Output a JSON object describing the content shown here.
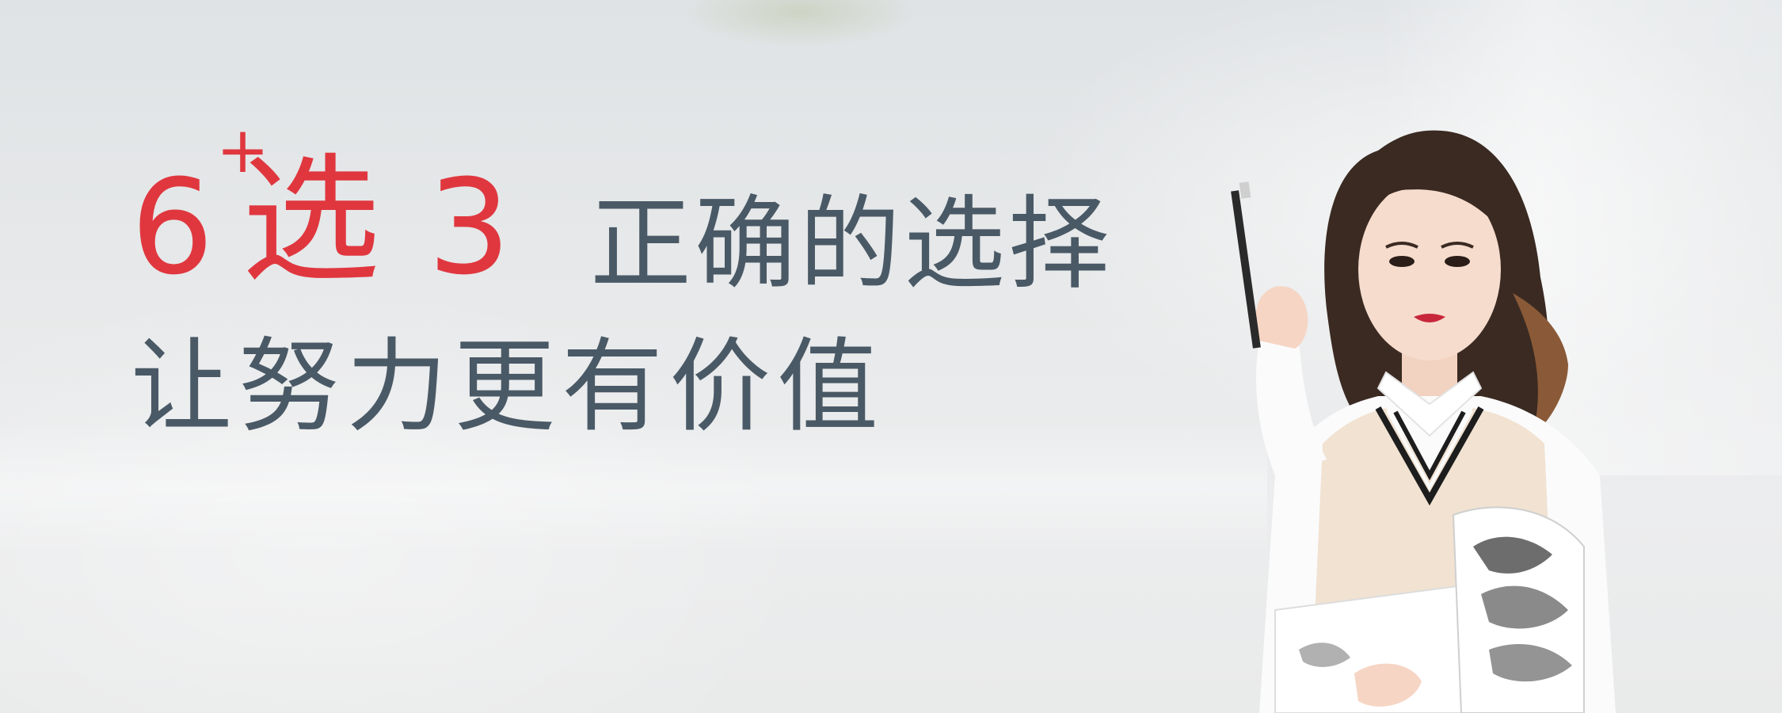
{
  "headline": {
    "number": "6",
    "plus": "+",
    "xuan": "选",
    "three": "3",
    "slogan_line_one": "正确的选择",
    "slogan_line_two": "让努力更有价值"
  },
  "colors": {
    "accent_red": "#e0373f",
    "text_slate": "#4a5966",
    "background": "#e7e9ea"
  }
}
